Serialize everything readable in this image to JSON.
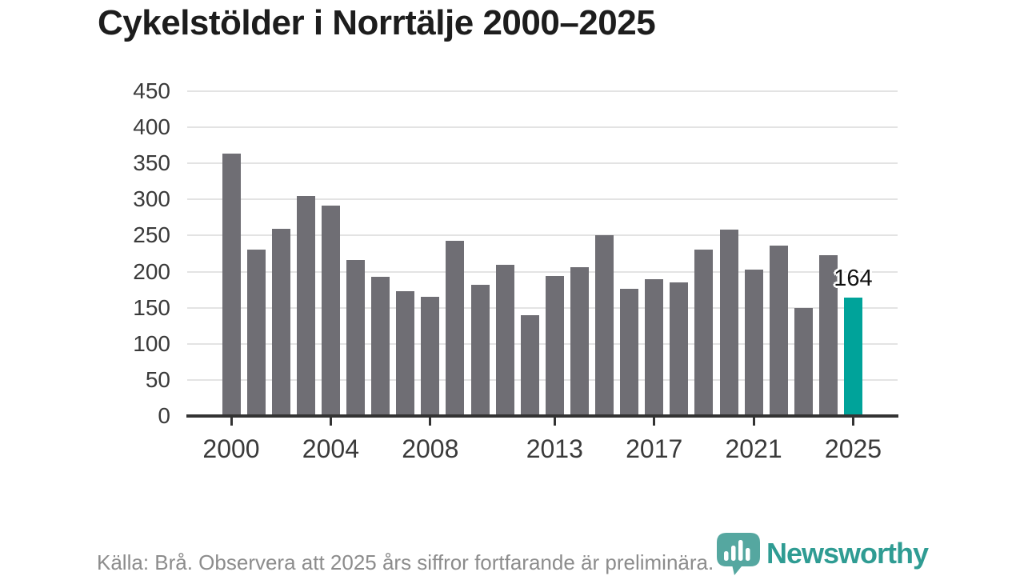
{
  "title": "Cykelstölder i Norrtälje 2000–2025",
  "chart_data": {
    "type": "bar",
    "title": "Cykelstölder i Norrtälje 2000–2025",
    "xlabel": "",
    "ylabel": "",
    "ylim": [
      0,
      450
    ],
    "yticks": [
      0,
      50,
      100,
      150,
      200,
      250,
      300,
      350,
      400,
      450
    ],
    "xticks": [
      2000,
      2004,
      2008,
      2013,
      2017,
      2021,
      2025
    ],
    "grid": "horizontal",
    "legend": "none",
    "categories": [
      2000,
      2001,
      2002,
      2003,
      2004,
      2005,
      2006,
      2007,
      2008,
      2009,
      2010,
      2011,
      2012,
      2013,
      2014,
      2015,
      2016,
      2017,
      2018,
      2019,
      2020,
      2021,
      2022,
      2023,
      2024,
      2025
    ],
    "values": [
      364,
      230,
      259,
      305,
      291,
      216,
      193,
      173,
      165,
      243,
      182,
      210,
      140,
      194,
      206,
      250,
      176,
      189,
      185,
      230,
      258,
      203,
      236,
      150,
      223,
      164
    ],
    "highlight": {
      "year": 2025,
      "label": "164"
    },
    "colors": {
      "bar": "#6f6e74",
      "highlight_bar": "#00a39a",
      "gridline": "#e3e3e3",
      "axis": "#333333",
      "tick_label": "#3a3a3a",
      "annotation_text": "#111111"
    }
  },
  "footer": {
    "source_text": "Källa: Brå. Observera att 2025 års siffror fortfarande är preliminära."
  },
  "branding": {
    "wordmark": "Newsworthy",
    "logo_icon": "newsworthy-speech-bubble-bar-chart-icon",
    "color": "#2f9c93"
  }
}
